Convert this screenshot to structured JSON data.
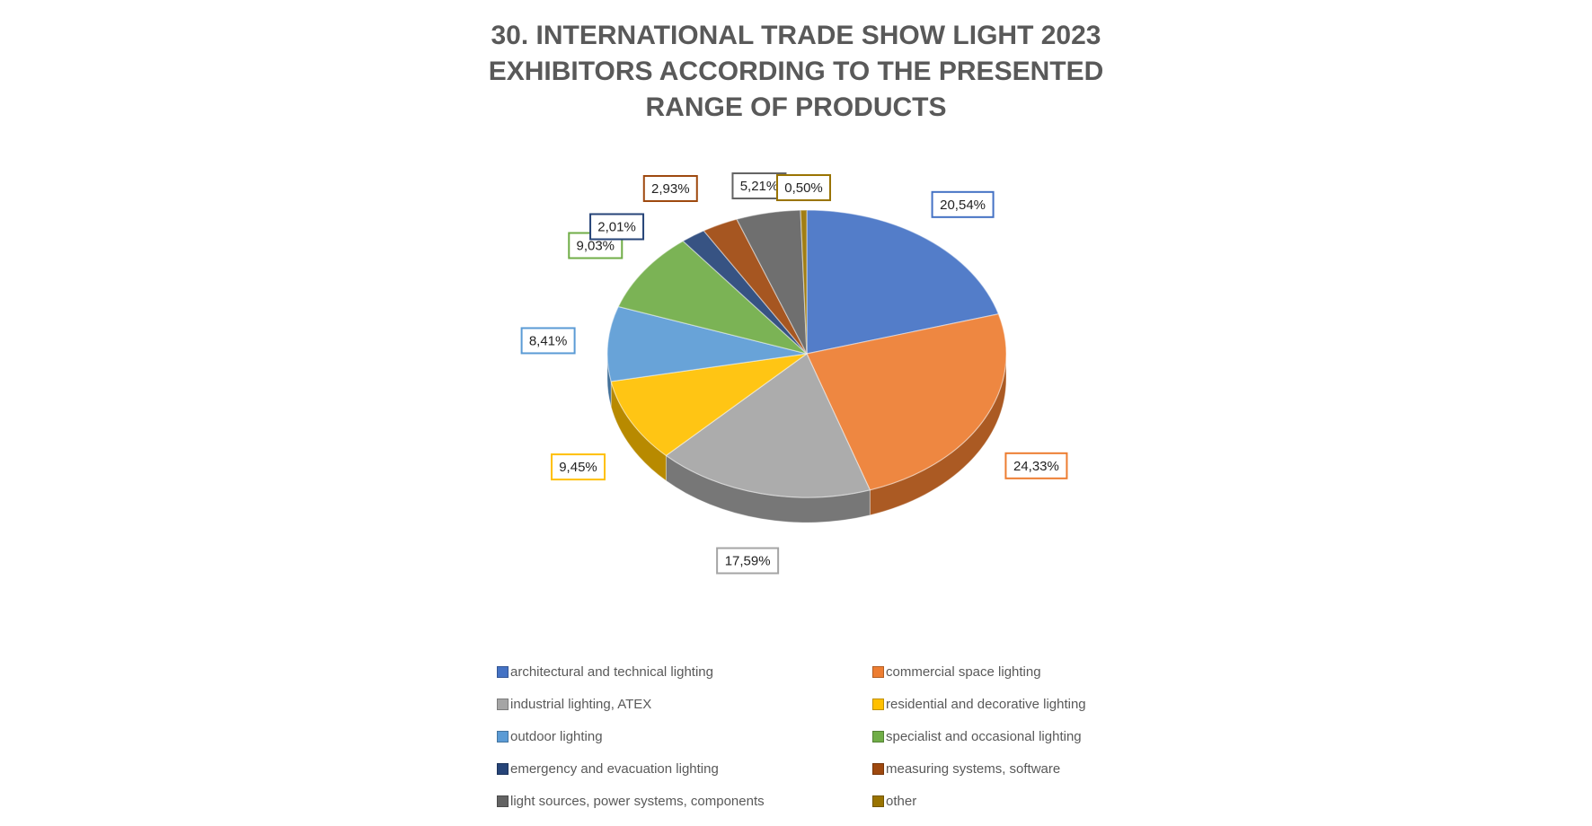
{
  "title_lines": [
    "30. INTERNATIONAL TRADE SHOW LIGHT 2023",
    "EXHIBITORS ACCORDING TO THE PRESENTED",
    "RANGE OF PRODUCTS"
  ],
  "chart_data": {
    "type": "pie",
    "style": "3d",
    "legend_position": "bottom",
    "slices": [
      {
        "category": "architectural and technical lighting",
        "value": 20.54,
        "label": "20,54%",
        "color": "#4472C4"
      },
      {
        "category": "commercial space lighting",
        "value": 24.33,
        "label": "24,33%",
        "color": "#ED7D31"
      },
      {
        "category": "industrial lighting, ATEX",
        "value": 17.59,
        "label": "17,59%",
        "color": "#A5A5A5"
      },
      {
        "category": "residential and decorative lighting",
        "value": 9.45,
        "label": "9,45%",
        "color": "#FFC000"
      },
      {
        "category": "outdoor lighting",
        "value": 8.41,
        "label": "8,41%",
        "color": "#5B9BD5"
      },
      {
        "category": "specialist and occasional lighting",
        "value": 9.03,
        "label": "9,03%",
        "color": "#70AD47"
      },
      {
        "category": "emergency and evacuation lighting",
        "value": 2.01,
        "label": "2,01%",
        "color": "#264478"
      },
      {
        "category": "measuring systems, software",
        "value": 2.93,
        "label": "2,93%",
        "color": "#9E480E"
      },
      {
        "category": "light sources, power systems, components",
        "value": 5.21,
        "label": "5,21%",
        "color": "#636363"
      },
      {
        "category": "other",
        "value": 0.5,
        "label": "0,50%",
        "color": "#997300"
      }
    ]
  }
}
